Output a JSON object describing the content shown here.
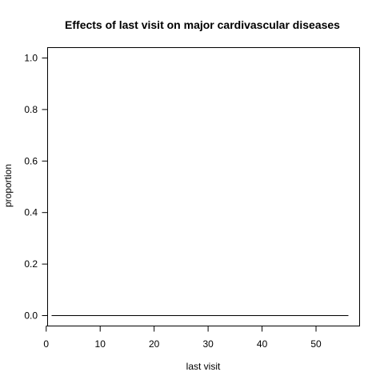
{
  "chart_data": {
    "type": "line",
    "title": "Effects of last visit on major cardivascular diseases",
    "xlabel": "last visit",
    "ylabel": "proportion",
    "xlim": [
      1,
      56
    ],
    "ylim": [
      0,
      1
    ],
    "x_ticks": [
      0,
      10,
      20,
      30,
      40,
      50
    ],
    "y_ticks": [
      0.0,
      0.2,
      0.4,
      0.6,
      0.8,
      1.0
    ],
    "x_tick_labels": [
      "0",
      "10",
      "20",
      "30",
      "40",
      "50"
    ],
    "y_tick_labels": [
      "0.0",
      "0.2",
      "0.4",
      "0.6",
      "0.8",
      "1.0"
    ],
    "grid": false,
    "legend": "none",
    "series": [
      {
        "x": [
          1,
          56
        ],
        "y": [
          0,
          0
        ]
      }
    ]
  }
}
